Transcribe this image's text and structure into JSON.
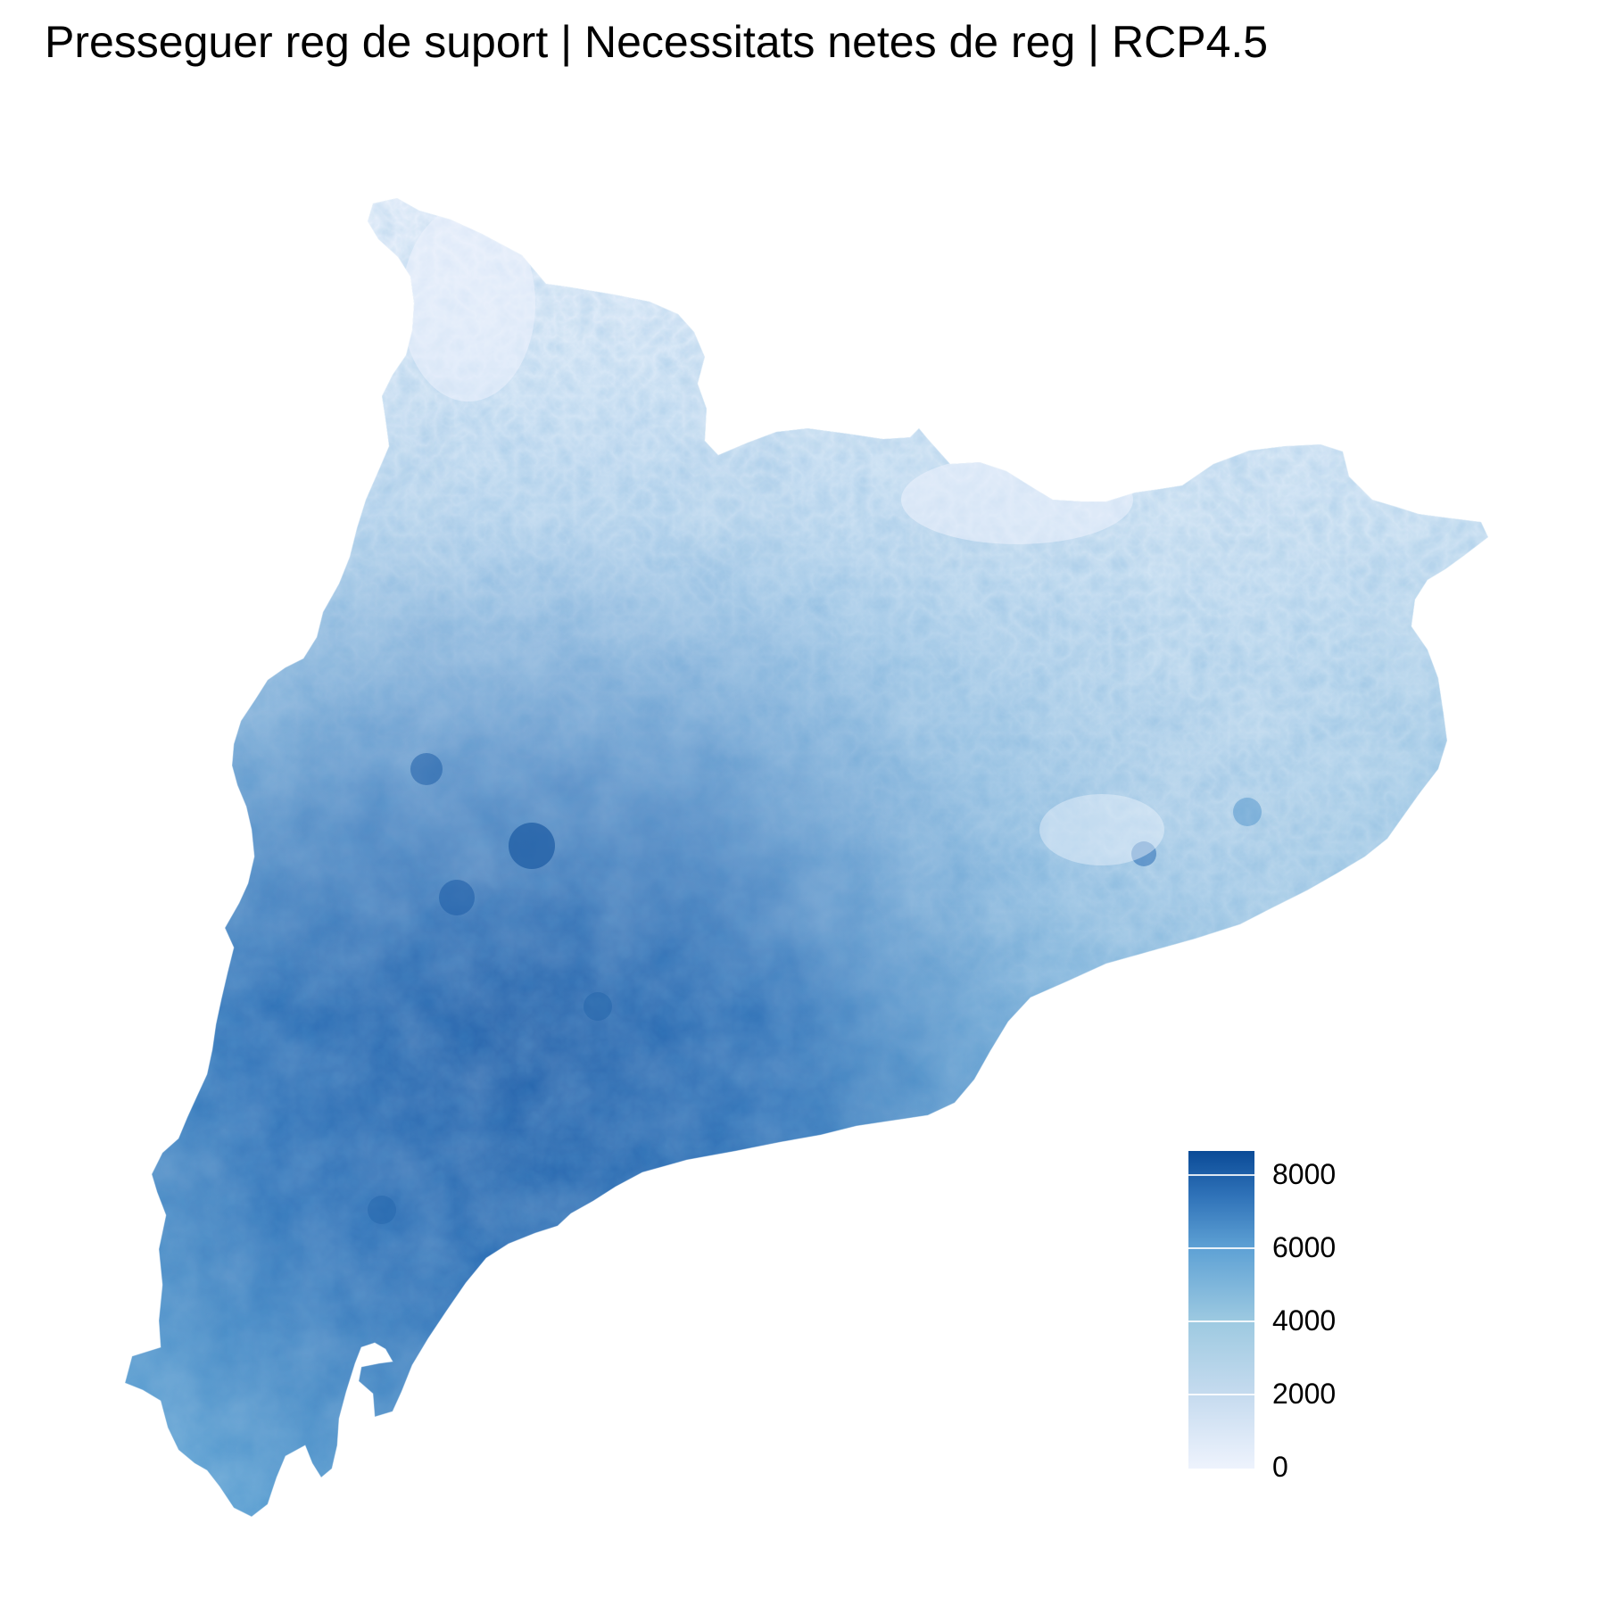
{
  "title": "Presseguer reg de suport | Necessitats netes de reg | RCP4.5",
  "legend": {
    "ticks": [
      "0",
      "2000",
      "4000",
      "6000",
      "8000"
    ],
    "min": 0,
    "max": 8700,
    "colors": [
      "#eef3fd",
      "#c6dbef",
      "#9ecae1",
      "#6baed6",
      "#3d87c8",
      "#08468f"
    ]
  },
  "map": {
    "region": "Catalonia",
    "fill_gradient": "blue",
    "high_value_area": "west",
    "low_value_area": "north-pyrenees"
  }
}
